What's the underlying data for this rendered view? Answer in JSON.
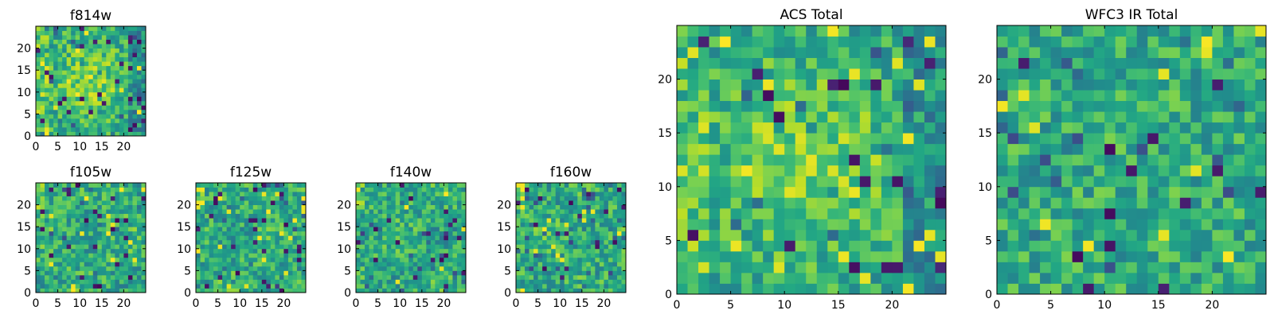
{
  "figure": {
    "description_colormap": "viridis",
    "colors": {
      "dark": "#440154",
      "mid_blue": "#31688e",
      "teal": "#21918c",
      "green": "#35b779",
      "light_green": "#90d743",
      "yellow": "#fde725"
    }
  },
  "chart_data": [
    {
      "id": "f814w",
      "type": "heatmap",
      "title": "f814w",
      "grid_size": 25,
      "seed": 814,
      "pattern": "central-bright",
      "xticks": [
        0,
        5,
        10,
        15,
        20
      ],
      "yticks": [
        0,
        5,
        10,
        15,
        20
      ],
      "xlim": [
        0,
        25
      ],
      "ylim": [
        0,
        25
      ]
    },
    {
      "id": "f105w",
      "type": "heatmap",
      "title": "f105w",
      "grid_size": 25,
      "seed": 105,
      "pattern": "smooth-noisy",
      "xticks": [
        0,
        5,
        10,
        15,
        20
      ],
      "yticks": [
        0,
        5,
        10,
        15,
        20
      ],
      "xlim": [
        0,
        25
      ],
      "ylim": [
        0,
        25
      ]
    },
    {
      "id": "f125w",
      "type": "heatmap",
      "title": "f125w",
      "grid_size": 25,
      "seed": 125,
      "pattern": "smooth-noisy",
      "xticks": [
        0,
        5,
        10,
        15,
        20
      ],
      "yticks": [
        0,
        5,
        10,
        15,
        20
      ],
      "xlim": [
        0,
        25
      ],
      "ylim": [
        0,
        25
      ]
    },
    {
      "id": "f140w",
      "type": "heatmap",
      "title": "f140w",
      "grid_size": 25,
      "seed": 140,
      "pattern": "smooth-noisy",
      "xticks": [
        0,
        5,
        10,
        15,
        20
      ],
      "yticks": [
        0,
        5,
        10,
        15,
        20
      ],
      "xlim": [
        0,
        25
      ],
      "ylim": [
        0,
        25
      ]
    },
    {
      "id": "f160w",
      "type": "heatmap",
      "title": "f160w",
      "grid_size": 25,
      "seed": 160,
      "pattern": "smooth-noisy",
      "xticks": [
        0,
        5,
        10,
        15,
        20
      ],
      "yticks": [
        0,
        5,
        10,
        15,
        20
      ],
      "xlim": [
        0,
        25
      ],
      "ylim": [
        0,
        25
      ]
    },
    {
      "id": "acs-total",
      "type": "heatmap",
      "title": "ACS Total",
      "grid_size": 25,
      "seed": 2001,
      "pattern": "central-bright",
      "xticks": [
        0,
        5,
        10,
        15,
        20
      ],
      "yticks": [
        0,
        5,
        10,
        15,
        20
      ],
      "xlim": [
        0,
        25
      ],
      "ylim": [
        0,
        25
      ]
    },
    {
      "id": "wfc3-ir-total",
      "type": "heatmap",
      "title": "WFC3 IR Total",
      "grid_size": 25,
      "seed": 3003,
      "pattern": "noisy",
      "xticks": [
        0,
        5,
        10,
        15,
        20
      ],
      "yticks": [
        0,
        5,
        10,
        15,
        20
      ],
      "xlim": [
        0,
        25
      ],
      "ylim": [
        0,
        25
      ]
    }
  ]
}
